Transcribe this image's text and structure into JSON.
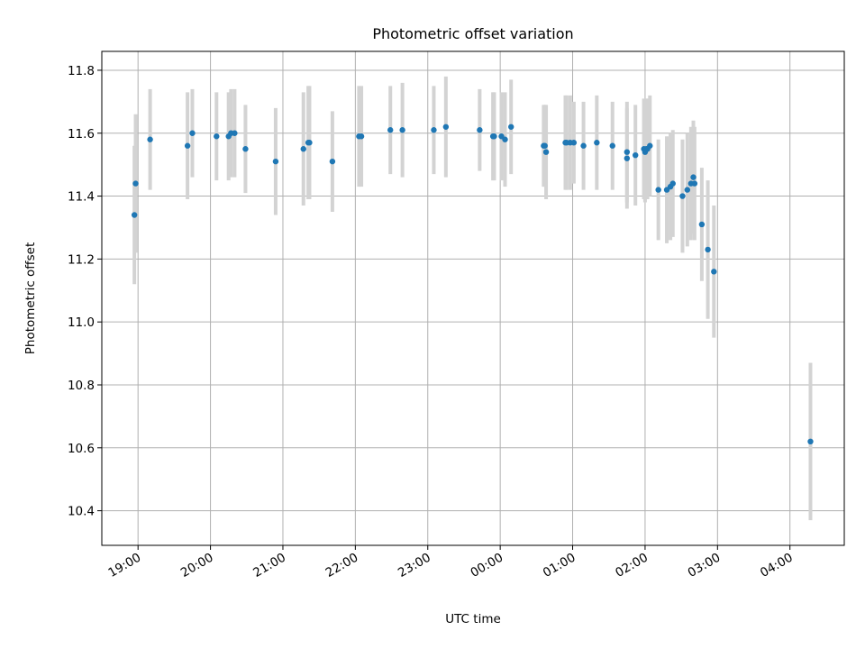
{
  "chart_data": {
    "type": "scatter",
    "title": "Photometric offset variation",
    "xlabel": "UTC time",
    "ylabel": "Photometric offset",
    "x_tick_labels": [
      "19:00",
      "20:00",
      "21:00",
      "22:00",
      "23:00",
      "00:00",
      "01:00",
      "02:00",
      "03:00",
      "04:00"
    ],
    "y_tick_labels": [
      "10.4",
      "10.6",
      "10.8",
      "11.0",
      "11.2",
      "11.4",
      "11.6",
      "11.8"
    ],
    "xlim": [
      "18:30",
      "04:45"
    ],
    "ylim": [
      10.29,
      11.86
    ],
    "grid": true,
    "point_color": "#1f77b4",
    "errorbar_color": "#d3d3d3",
    "series": [
      {
        "x": [
          "18:57",
          "18:58",
          "19:10",
          "19:41",
          "19:45",
          "20:05",
          "20:15",
          "20:17",
          "20:20",
          "20:29",
          "20:54",
          "21:17",
          "21:21",
          "21:22",
          "21:41",
          "22:03",
          "22:05",
          "22:29",
          "22:39",
          "23:05",
          "23:15",
          "23:43",
          "23:54",
          "23:55",
          "00:01",
          "00:04",
          "00:09",
          "00:36",
          "00:37",
          "00:38",
          "00:54",
          "00:55",
          "00:58",
          "01:01",
          "01:09",
          "01:20",
          "01:33",
          "01:45",
          "01:45",
          "01:52",
          "01:59",
          "02:00",
          "02:01",
          "02:02",
          "02:04",
          "02:11",
          "02:18",
          "02:21",
          "02:23",
          "02:31",
          "02:35",
          "02:38",
          "02:40",
          "02:41",
          "02:47",
          "02:52",
          "02:57",
          "04:17"
        ],
        "y": [
          11.34,
          11.44,
          11.58,
          11.56,
          11.6,
          11.59,
          11.59,
          11.6,
          11.6,
          11.55,
          11.51,
          11.55,
          11.57,
          11.57,
          11.51,
          11.59,
          11.59,
          11.61,
          11.61,
          11.61,
          11.62,
          11.61,
          11.59,
          11.59,
          11.59,
          11.58,
          11.62,
          11.56,
          11.56,
          11.54,
          11.57,
          11.57,
          11.57,
          11.57,
          11.56,
          11.57,
          11.56,
          11.54,
          11.52,
          11.53,
          11.55,
          11.54,
          11.55,
          11.55,
          11.56,
          11.42,
          11.42,
          11.43,
          11.44,
          11.4,
          11.42,
          11.44,
          11.46,
          11.44,
          11.31,
          11.23,
          11.16,
          10.62
        ],
        "yerr": [
          0.22,
          0.22,
          0.16,
          0.17,
          0.14,
          0.14,
          0.14,
          0.14,
          0.14,
          0.14,
          0.17,
          0.18,
          0.18,
          0.18,
          0.16,
          0.16,
          0.16,
          0.14,
          0.15,
          0.14,
          0.16,
          0.13,
          0.14,
          0.14,
          0.14,
          0.15,
          0.15,
          0.13,
          0.13,
          0.15,
          0.15,
          0.15,
          0.15,
          0.13,
          0.14,
          0.15,
          0.14,
          0.16,
          0.16,
          0.16,
          0.16,
          0.16,
          0.16,
          0.16,
          0.16,
          0.16,
          0.17,
          0.17,
          0.17,
          0.18,
          0.18,
          0.18,
          0.18,
          0.18,
          0.18,
          0.22,
          0.21,
          0.25
        ]
      }
    ]
  }
}
